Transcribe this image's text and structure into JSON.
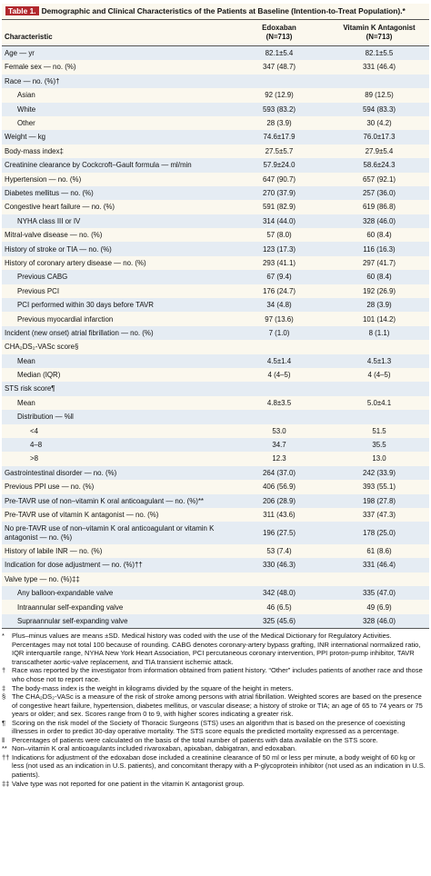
{
  "header": {
    "label": "Table 1.",
    "title": "Demographic and Clinical Characteristics of the Patients at Baseline (Intention-to-Treat Population).*"
  },
  "table": {
    "columns": [
      {
        "name": "Characteristic"
      },
      {
        "name": "Edoxaban",
        "n": "(N=713)"
      },
      {
        "name": "Vitamin K Antagonist",
        "n": "(N=713)"
      }
    ],
    "rows": [
      {
        "label": "Age — yr",
        "indent": 0,
        "edoxaban": "82.1±5.4",
        "vka": "82.1±5.5"
      },
      {
        "label": "Female sex — no. (%)",
        "indent": 0,
        "edoxaban": "347 (48.7)",
        "vka": "331 (46.4)"
      },
      {
        "label": "Race — no. (%)†",
        "indent": 0
      },
      {
        "label": "Asian",
        "indent": 1,
        "edoxaban": "92 (12.9)",
        "vka": "89 (12.5)"
      },
      {
        "label": "White",
        "indent": 1,
        "edoxaban": "593 (83.2)",
        "vka": "594 (83.3)"
      },
      {
        "label": "Other",
        "indent": 1,
        "edoxaban": "28 (3.9)",
        "vka": "30 (4.2)"
      },
      {
        "label": "Weight — kg",
        "indent": 0,
        "edoxaban": "74.6±17.9",
        "vka": "76.0±17.3"
      },
      {
        "label": "Body-mass index‡",
        "indent": 0,
        "edoxaban": "27.5±5.7",
        "vka": "27.9±5.4"
      },
      {
        "label": "Creatinine clearance by Cockcroft–Gault formula — ml/min",
        "indent": 0,
        "edoxaban": "57.9±24.0",
        "vka": "58.6±24.3"
      },
      {
        "label": "Hypertension — no. (%)",
        "indent": 0,
        "edoxaban": "647 (90.7)",
        "vka": "657 (92.1)"
      },
      {
        "label": "Diabetes mellitus — no. (%)",
        "indent": 0,
        "edoxaban": "270 (37.9)",
        "vka": "257 (36.0)"
      },
      {
        "label": "Congestive heart failure — no. (%)",
        "indent": 0,
        "edoxaban": "591 (82.9)",
        "vka": "619 (86.8)"
      },
      {
        "label": "NYHA class III or IV",
        "indent": 1,
        "edoxaban": "314 (44.0)",
        "vka": "328 (46.0)"
      },
      {
        "label": "Mitral-valve disease — no. (%)",
        "indent": 0,
        "edoxaban": "57 (8.0)",
        "vka": "60 (8.4)"
      },
      {
        "label": "History of stroke or TIA — no. (%)",
        "indent": 0,
        "edoxaban": "123 (17.3)",
        "vka": "116 (16.3)"
      },
      {
        "label": "History of coronary artery disease — no. (%)",
        "indent": 0,
        "edoxaban": "293 (41.1)",
        "vka": "297 (41.7)"
      },
      {
        "label": "Previous CABG",
        "indent": 1,
        "edoxaban": "67 (9.4)",
        "vka": "60 (8.4)"
      },
      {
        "label": "Previous PCI",
        "indent": 1,
        "edoxaban": "176 (24.7)",
        "vka": "192 (26.9)"
      },
      {
        "label": "PCI performed within 30 days before TAVR",
        "indent": 1,
        "edoxaban": "34 (4.8)",
        "vka": "28 (3.9)"
      },
      {
        "label": "Previous myocardial infarction",
        "indent": 1,
        "edoxaban": "97 (13.6)",
        "vka": "101 (14.2)"
      },
      {
        "label": "Incident (new onset) atrial fibrillation — no. (%)",
        "indent": 0,
        "edoxaban": "7 (1.0)",
        "vka": "8 (1.1)"
      },
      {
        "label": "CHA₂DS₂-VASc score§",
        "indent": 0
      },
      {
        "label": "Mean",
        "indent": 1,
        "edoxaban": "4.5±1.4",
        "vka": "4.5±1.3"
      },
      {
        "label": "Median (IQR)",
        "indent": 1,
        "edoxaban": "4 (4–5)",
        "vka": "4 (4–5)"
      },
      {
        "label": "STS risk score¶",
        "indent": 0
      },
      {
        "label": "Mean",
        "indent": 1,
        "edoxaban": "4.8±3.5",
        "vka": "5.0±4.1"
      },
      {
        "label": "Distribution — %‖",
        "indent": 1
      },
      {
        "label": "<4",
        "indent": 2,
        "edoxaban": "53.0",
        "vka": "51.5"
      },
      {
        "label": "4–8",
        "indent": 2,
        "edoxaban": "34.7",
        "vka": "35.5"
      },
      {
        "label": ">8",
        "indent": 2,
        "edoxaban": "12.3",
        "vka": "13.0"
      },
      {
        "label": "Gastrointestinal disorder — no. (%)",
        "indent": 0,
        "edoxaban": "264 (37.0)",
        "vka": "242 (33.9)"
      },
      {
        "label": "Previous PPI use — no. (%)",
        "indent": 0,
        "edoxaban": "406 (56.9)",
        "vka": "393 (55.1)"
      },
      {
        "label": "Pre-TAVR use of non–vitamin K oral anticoagulant — no. (%)**",
        "indent": 0,
        "edoxaban": "206 (28.9)",
        "vka": "198 (27.8)"
      },
      {
        "label": "Pre-TAVR use of vitamin K antagonist — no. (%)",
        "indent": 0,
        "edoxaban": "311 (43.6)",
        "vka": "337 (47.3)"
      },
      {
        "label": "No pre-TAVR use of non–vitamin K oral anticoagulant or vitamin K antagonist — no. (%)",
        "indent": 0,
        "edoxaban": "196 (27.5)",
        "vka": "178 (25.0)"
      },
      {
        "label": "History of labile INR — no. (%)",
        "indent": 0,
        "edoxaban": "53 (7.4)",
        "vka": "61 (8.6)"
      },
      {
        "label": "Indication for dose adjustment — no. (%)††",
        "indent": 0,
        "edoxaban": "330 (46.3)",
        "vka": "331 (46.4)"
      },
      {
        "label": "Valve type — no. (%)‡‡",
        "indent": 0
      },
      {
        "label": "Any balloon-expandable valve",
        "indent": 1,
        "edoxaban": "342 (48.0)",
        "vka": "335 (47.0)"
      },
      {
        "label": "Intraannular self-expanding valve",
        "indent": 1,
        "edoxaban": "46 (6.5)",
        "vka": "49 (6.9)"
      },
      {
        "label": "Supraannular self-expanding valve",
        "indent": 1,
        "edoxaban": "325 (45.6)",
        "vka": "328 (46.0)"
      }
    ]
  },
  "footnotes": [
    {
      "mark": "*",
      "text": "Plus–minus values are means ±SD. Medical history was coded with the use of the Medical Dictionary for Regulatory Activities. Percentages may not total 100 because of rounding. CABG denotes coronary-artery bypass grafting, INR international normalized ratio, IQR interquartile range, NYHA New York Heart Association, PCI percutaneous coronary intervention, PPI proton-pump inhibitor, TAVR transcatheter aortic-valve replacement, and TIA transient ischemic attack."
    },
    {
      "mark": "†",
      "text": "Race was reported by the investigator from information obtained from patient history. “Other” includes patients of another race and those who chose not to report race."
    },
    {
      "mark": "‡",
      "text": "The body-mass index is the weight in kilograms divided by the square of the height in meters."
    },
    {
      "mark": "§",
      "text": "The CHA₂DS₂-VASc is a measure of the risk of stroke among persons with atrial fibrillation. Weighted scores are based on the presence of congestive heart failure, hypertension, diabetes mellitus, or vascular disease; a history of stroke or TIA; an age of 65 to 74 years or 75 years or older; and sex. Scores range from 0 to 9, with higher scores indicating a greater risk."
    },
    {
      "mark": "¶",
      "text": "Scoring on the risk model of the Society of Thoracic Surgeons (STS) uses an algorithm that is based on the presence of coexisting illnesses in order to predict 30-day operative mortality. The STS score equals the predicted mortality expressed as a percentage."
    },
    {
      "mark": "‖",
      "text": "Percentages of patients were calculated on the basis of the total number of patients with data available on the STS score."
    },
    {
      "mark": "**",
      "text": "Non–vitamin K oral anticoagulants included rivaroxaban, apixaban, dabigatran, and edoxaban."
    },
    {
      "mark": "††",
      "text": "Indications for adjustment of the edoxaban dose included a creatinine clearance of 50 ml or less per minute, a body weight of 60 kg or less (not used as an indication in U.S. patients), and concomitant therapy with a P-glycoprotein inhibitor (not used as an indication in U.S. patients)."
    },
    {
      "mark": "‡‡",
      "text": "Valve type was not reported for one patient in the vitamin K antagonist group."
    }
  ]
}
